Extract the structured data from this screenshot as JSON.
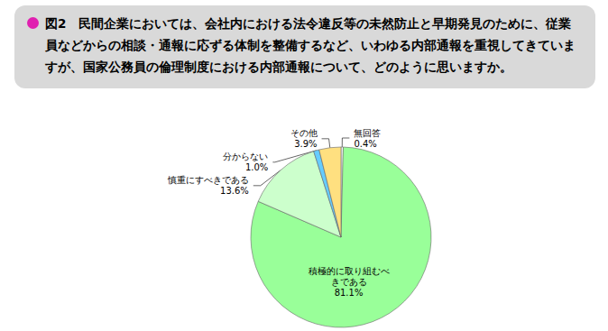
{
  "chart_data": {
    "type": "pie",
    "title": "図2　民間企業においては、会社内における法令違反等の未然防止と早期発見のために、従業員などからの相談・通報に応ずる体制を整備するなど、いわゆる内部通報を重視してきていますが、国家公務員の倫理制度における内部通報について、どのように思いますか。",
    "categories": [
      "無回答",
      "積極的に取り組むべきである",
      "慎重にすべきである",
      "分からない",
      "その他"
    ],
    "values": [
      0.4,
      81.1,
      13.6,
      1.0,
      3.9
    ],
    "value_labels": [
      "0.4%",
      "81.1%",
      "13.6%",
      "1.0%",
      "3.9%"
    ],
    "colors": [
      "#ffffff",
      "#99ff99",
      "#ccffcc",
      "#66ccff",
      "#ffe080"
    ],
    "data_labels": true
  }
}
